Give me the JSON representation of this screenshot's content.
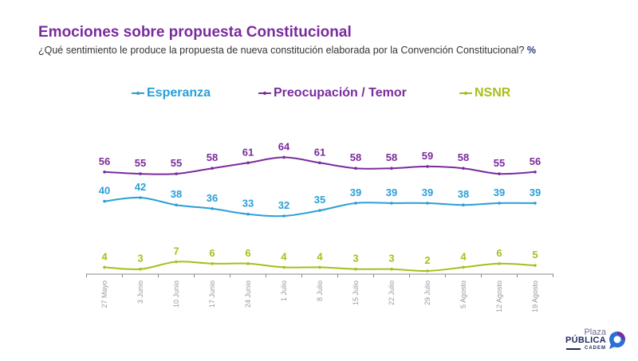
{
  "header": {
    "title": "Emociones sobre propuesta Constitucional",
    "subtitle": "¿Qué sentimiento le produce la propuesta de nueva constitución elaborada por la Convención Constitucional?",
    "unit": "%"
  },
  "logo": {
    "line1": "Plaza",
    "line2": "PÚBLICA",
    "line3": "CADEM"
  },
  "chart_data": {
    "type": "line",
    "title": "Emociones sobre propuesta Constitucional",
    "subtitle": "¿Qué sentimiento le produce la propuesta de nueva constitución elaborada por la Convención Constitucional? %",
    "xlabel": "",
    "ylabel": "%",
    "ylim": [
      0,
      70
    ],
    "grid": false,
    "legend_position": "top-center",
    "categories": [
      "27 Mayo",
      "3 Junio",
      "10 Junio",
      "17 Junio",
      "24 Junio",
      "1 Julio",
      "8 Julio",
      "15 Julio",
      "22 Julio",
      "29 Julio",
      "5 Agosto",
      "12 Agosto",
      "19 Agosto"
    ],
    "series": [
      {
        "name": "Esperanza",
        "color": "#2a9fd6",
        "values": [
          40,
          42,
          38,
          36,
          33,
          32,
          35,
          39,
          39,
          39,
          38,
          39,
          39
        ]
      },
      {
        "name": "Preocupación / Temor",
        "color": "#7a2b9c",
        "values": [
          56,
          55,
          55,
          58,
          61,
          64,
          61,
          58,
          58,
          59,
          58,
          55,
          56
        ]
      },
      {
        "name": "NSNR",
        "color": "#a8be1c",
        "values": [
          4,
          3,
          7,
          6,
          6,
          4,
          4,
          3,
          3,
          2,
          4,
          6,
          5
        ]
      }
    ]
  }
}
